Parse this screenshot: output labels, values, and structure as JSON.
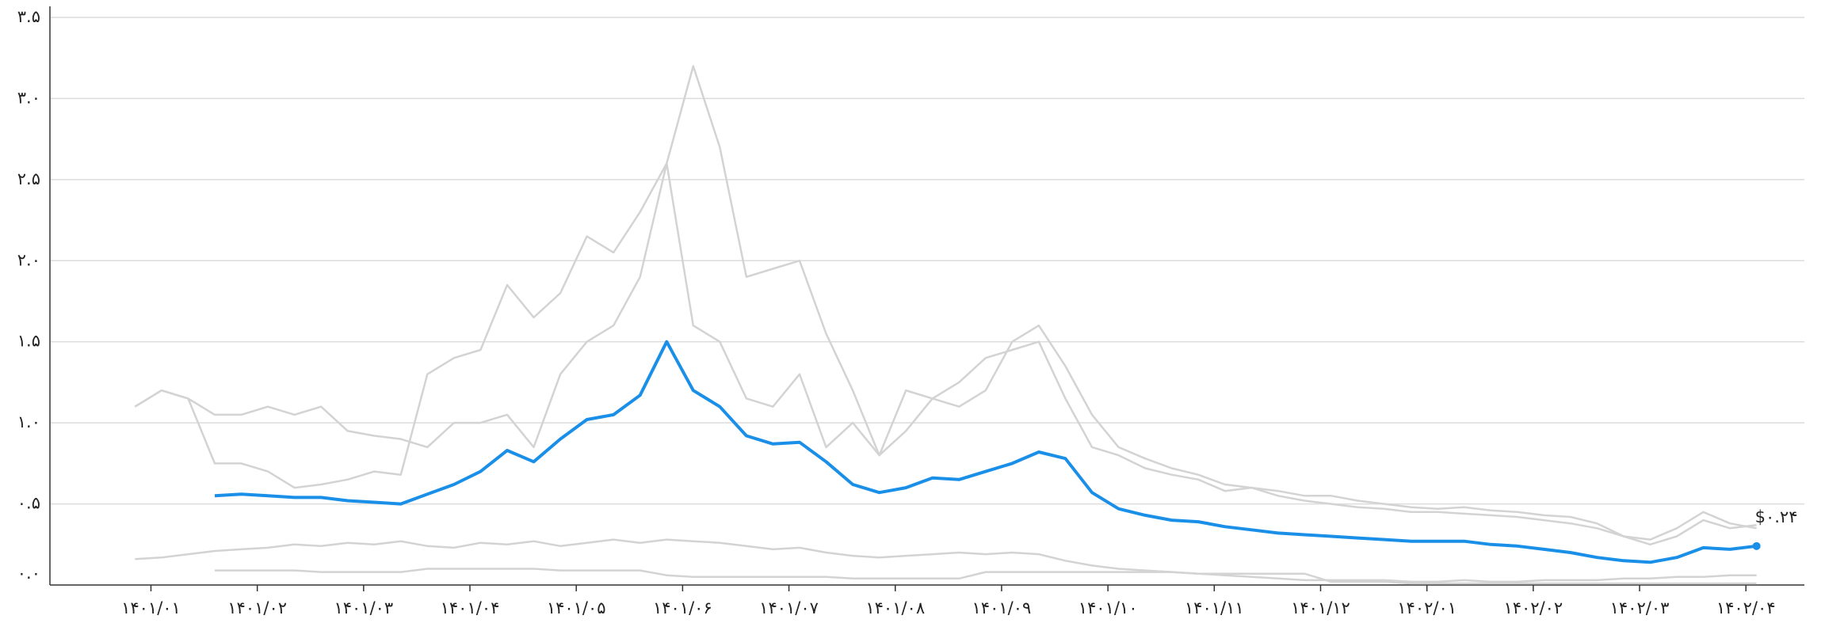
{
  "chart_data": {
    "type": "line",
    "annotation": "$۰.۲۴",
    "x": [
      -0.15,
      0.1,
      0.35,
      0.6,
      0.85,
      1.1,
      1.35,
      1.6,
      1.85,
      2.1,
      2.35,
      2.6,
      2.85,
      3.1,
      3.35,
      3.6,
      3.85,
      4.1,
      4.35,
      4.6,
      4.85,
      5.1,
      5.35,
      5.6,
      5.85,
      6.1,
      6.35,
      6.6,
      6.85,
      7.1,
      7.35,
      7.6,
      7.85,
      8.1,
      8.35,
      8.6,
      8.85,
      9.1,
      9.35,
      9.6,
      9.85,
      10.1,
      10.35,
      10.6,
      10.85,
      11.1,
      11.35,
      11.6,
      11.85,
      12.1,
      12.35,
      12.6,
      12.85,
      13.1,
      13.35,
      13.6,
      13.85,
      14.1,
      14.35,
      14.6,
      14.85,
      15.1
    ],
    "series": [
      {
        "color": "#d3d3d3",
        "values": [
          1.1,
          1.2,
          1.15,
          0.75,
          0.75,
          0.7,
          0.6,
          0.62,
          0.65,
          0.7,
          0.68,
          1.3,
          1.4,
          1.45,
          1.85,
          1.65,
          1.8,
          2.15,
          2.05,
          2.3,
          2.6,
          3.2,
          2.7,
          1.9,
          1.95,
          2.0,
          1.55,
          1.2,
          0.8,
          1.2,
          1.15,
          1.25,
          1.4,
          1.45,
          1.5,
          1.15,
          0.85,
          0.8,
          0.72,
          0.68,
          0.65,
          0.58,
          0.6,
          0.55,
          0.52,
          0.5,
          0.48,
          0.47,
          0.45,
          0.45,
          0.44,
          0.43,
          0.42,
          0.4,
          0.38,
          0.35,
          0.3,
          0.25,
          0.3,
          0.4,
          0.35,
          0.37
        ]
      },
      {
        "color": "#d3d3d3",
        "values": [
          1.1,
          1.2,
          1.15,
          1.05,
          1.05,
          1.1,
          1.05,
          1.1,
          0.95,
          0.92,
          0.9,
          0.85,
          1.0,
          1.0,
          1.05,
          0.85,
          1.3,
          1.5,
          1.6,
          1.9,
          2.6,
          1.6,
          1.5,
          1.15,
          1.1,
          1.3,
          0.85,
          1.0,
          0.8,
          0.95,
          1.15,
          1.1,
          1.2,
          1.5,
          1.6,
          1.35,
          1.05,
          0.85,
          0.78,
          0.72,
          0.68,
          0.62,
          0.6,
          0.58,
          0.55,
          0.55,
          0.52,
          0.5,
          0.48,
          0.47,
          0.48,
          0.46,
          0.45,
          0.43,
          0.42,
          0.38,
          0.3,
          0.28,
          0.35,
          0.45,
          0.38,
          0.35
        ]
      },
      {
        "color": "#d3d3d3",
        "values": [
          0.16,
          0.17,
          0.19,
          0.21,
          0.22,
          0.23,
          0.25,
          0.24,
          0.26,
          0.25,
          0.27,
          0.24,
          0.23,
          0.26,
          0.25,
          0.27,
          0.24,
          0.26,
          0.28,
          0.26,
          0.28,
          0.27,
          0.26,
          0.24,
          0.22,
          0.23,
          0.2,
          0.18,
          0.17,
          0.18,
          0.19,
          0.2,
          0.19,
          0.2,
          0.19,
          0.15,
          0.12,
          0.1,
          0.09,
          0.08,
          0.07,
          0.06,
          0.05,
          0.04,
          0.03,
          0.03,
          0.03,
          0.03,
          0.02,
          0.02,
          0.03,
          0.02,
          0.02,
          0.03,
          0.03,
          0.03,
          0.04,
          0.04,
          0.05,
          0.05,
          0.06,
          0.06
        ]
      },
      {
        "color": "#d3d3d3",
        "values": [
          null,
          null,
          null,
          0.09,
          0.09,
          0.09,
          0.09,
          0.08,
          0.08,
          0.08,
          0.08,
          0.1,
          0.1,
          0.1,
          0.1,
          0.1,
          0.09,
          0.09,
          0.09,
          0.09,
          0.06,
          0.05,
          0.05,
          0.05,
          0.05,
          0.05,
          0.05,
          0.04,
          0.04,
          0.04,
          0.04,
          0.04,
          0.08,
          0.08,
          0.08,
          0.08,
          0.08,
          0.08,
          0.08,
          0.08,
          0.07,
          0.07,
          0.07,
          0.07,
          0.07,
          0.02,
          0.02,
          0.02,
          0.01,
          0.01,
          0.01,
          0.01,
          0.01,
          0.01,
          0.01,
          0.01,
          0.01,
          0.01,
          0.01,
          0.01,
          0.01,
          0.01
        ]
      },
      {
        "color": "#1a8fe8",
        "values": [
          null,
          null,
          null,
          0.55,
          0.56,
          0.55,
          0.54,
          0.54,
          0.52,
          0.51,
          0.5,
          0.56,
          0.62,
          0.7,
          0.83,
          0.76,
          0.9,
          1.02,
          1.05,
          1.17,
          1.5,
          1.2,
          1.1,
          0.92,
          0.87,
          0.88,
          0.76,
          0.62,
          0.57,
          0.6,
          0.66,
          0.65,
          0.7,
          0.75,
          0.82,
          0.78,
          0.57,
          0.47,
          0.43,
          0.4,
          0.39,
          0.36,
          0.34,
          0.32,
          0.31,
          0.3,
          0.29,
          0.28,
          0.27,
          0.27,
          0.27,
          0.25,
          0.24,
          0.22,
          0.2,
          0.17,
          0.15,
          0.14,
          0.17,
          0.23,
          0.22,
          0.24
        ]
      }
    ],
    "xlim": [
      -0.95,
      15.55
    ],
    "xticks": [
      {
        "value": 0,
        "label": "۱۴۰۱/۰۱"
      },
      {
        "value": 1,
        "label": "۱۴۰۱/۰۲"
      },
      {
        "value": 2,
        "label": "۱۴۰۱/۰۳"
      },
      {
        "value": 3,
        "label": "۱۴۰۱/۰۴"
      },
      {
        "value": 4,
        "label": "۱۴۰۱/۰۵"
      },
      {
        "value": 5,
        "label": "۱۴۰۱/۰۶"
      },
      {
        "value": 6,
        "label": "۱۴۰۱/۰۷"
      },
      {
        "value": 7,
        "label": "۱۴۰۱/۰۸"
      },
      {
        "value": 8,
        "label": "۱۴۰۱/۰۹"
      },
      {
        "value": 9,
        "label": "۱۴۰۱/۱۰"
      },
      {
        "value": 10,
        "label": "۱۴۰۱/۱۱"
      },
      {
        "value": 11,
        "label": "۱۴۰۱/۱۲"
      },
      {
        "value": 12,
        "label": "۱۴۰۲/۰۱"
      },
      {
        "value": 13,
        "label": "۱۴۰۲/۰۲"
      },
      {
        "value": 14,
        "label": "۱۴۰۲/۰۳"
      },
      {
        "value": 15,
        "label": "۱۴۰۲/۰۴"
      }
    ],
    "ylim": [
      0,
      3.5
    ],
    "yticks": [
      {
        "value": 0,
        "label": "۰.۰"
      },
      {
        "value": 0.5,
        "label": "۰.۵"
      },
      {
        "value": 1,
        "label": "۱.۰"
      },
      {
        "value": 1.5,
        "label": "۱.۵"
      },
      {
        "value": 2,
        "label": "۲.۰"
      },
      {
        "value": 2.5,
        "label": "۲.۵"
      },
      {
        "value": 3,
        "label": "۳.۰"
      },
      {
        "value": 3.5,
        "label": "۳.۵"
      }
    ],
    "grid": true
  }
}
